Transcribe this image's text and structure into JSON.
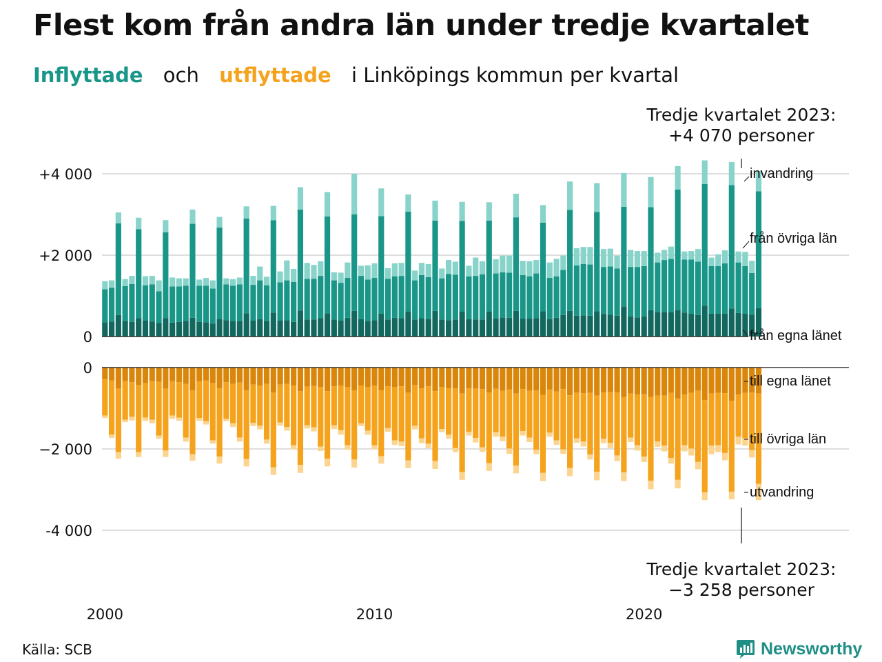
{
  "title": "Flest kom från andra län under tredje kvartalet",
  "subtitle": {
    "in_word": "Inflyttade",
    "and_word": "och",
    "out_word": "utflyttade",
    "rest": "i Linköpings  kommun  per  kvartal"
  },
  "annotation_top": {
    "line1": "Tredje kvartalet 2023:",
    "line2": "+4 070 personer"
  },
  "annotation_bottom": {
    "line1": "Tredje kvartalet 2023:",
    "line2": "−3 258 personer"
  },
  "source": "Källa: SCB",
  "brand": "Newsworthy",
  "colors": {
    "in_own": "#12675e",
    "in_other": "#1a9688",
    "in_immig": "#88d3ca",
    "out_own": "#d9860a",
    "out_other": "#f5a21c",
    "out_emig": "#fbd490"
  },
  "chart_data": {
    "type": "bar",
    "stacked": true,
    "x_label_ticks": [
      "2000",
      "2010",
      "2020"
    ],
    "y_ticks_top": [
      "+4 000",
      "+2 000",
      "0"
    ],
    "y_ticks_bottom": [
      "0",
      "−2 000",
      "-4 000"
    ],
    "ylim_top": [
      0,
      4400
    ],
    "ylim_bottom": [
      -4400,
      0
    ],
    "grid": true,
    "segment_labels_in": [
      "invandring",
      "från övriga län",
      "från egna länet"
    ],
    "segment_labels_out": [
      "till egna länet",
      "till övriga län",
      "utvandring"
    ],
    "start": "2000 Q1",
    "frequency": "quarterly",
    "in_own": [
      350,
      370,
      530,
      380,
      360,
      450,
      390,
      370,
      330,
      450,
      340,
      360,
      380,
      460,
      360,
      350,
      320,
      430,
      400,
      380,
      380,
      570,
      390,
      430,
      380,
      590,
      390,
      400,
      360,
      640,
      420,
      420,
      450,
      570,
      420,
      390,
      460,
      630,
      430,
      380,
      400,
      560,
      420,
      460,
      450,
      610,
      420,
      450,
      430,
      630,
      420,
      400,
      420,
      610,
      430,
      420,
      420,
      610,
      440,
      470,
      460,
      630,
      440,
      440,
      450,
      620,
      430,
      460,
      530,
      630,
      510,
      520,
      510,
      620,
      550,
      540,
      510,
      740,
      490,
      470,
      490,
      650,
      600,
      600,
      600,
      650,
      590,
      560,
      530,
      760,
      560,
      560,
      560,
      690,
      580,
      560,
      540,
      700
    ],
    "in_other": [
      810,
      830,
      2250,
      860,
      930,
      2190,
      870,
      910,
      780,
      2110,
      890,
      870,
      870,
      2310,
      890,
      900,
      860,
      2250,
      880,
      870,
      900,
      2330,
      880,
      950,
      880,
      2270,
      940,
      980,
      980,
      2480,
      1000,
      1000,
      1040,
      2380,
      960,
      930,
      980,
      2370,
      1060,
      1020,
      1040,
      2400,
      1000,
      1020,
      1040,
      2460,
      960,
      1060,
      1030,
      2220,
      1010,
      1140,
      1100,
      2230,
      1050,
      1070,
      1110,
      2240,
      1110,
      1110,
      1110,
      2300,
      1070,
      1040,
      1100,
      2180,
      1010,
      1020,
      1110,
      2480,
      1240,
      1260,
      1260,
      2440,
      1160,
      1180,
      1160,
      2450,
      1220,
      1240,
      1240,
      2530,
      1220,
      1280,
      1310,
      2960,
      1300,
      1330,
      1310,
      2990,
      1170,
      1170,
      1240,
      3030,
      1240,
      1170,
      1020,
      2870
    ],
    "in_immig": [
      200,
      180,
      270,
      170,
      200,
      280,
      220,
      210,
      270,
      300,
      220,
      200,
      180,
      350,
      150,
      190,
      200,
      260,
      150,
      160,
      170,
      300,
      220,
      340,
      210,
      350,
      270,
      490,
      320,
      550,
      390,
      340,
      360,
      600,
      200,
      250,
      380,
      1000,
      250,
      350,
      360,
      680,
      260,
      320,
      320,
      420,
      240,
      300,
      320,
      490,
      240,
      340,
      320,
      470,
      260,
      450,
      320,
      450,
      350,
      410,
      420,
      580,
      350,
      370,
      330,
      430,
      380,
      430,
      350,
      700,
      420,
      420,
      430,
      710,
      440,
      440,
      320,
      830,
      420,
      390,
      370,
      740,
      240,
      250,
      300,
      580,
      200,
      210,
      310,
      580,
      210,
      290,
      320,
      570,
      270,
      350,
      300,
      500
    ],
    "out_own": [
      -290,
      -320,
      -520,
      -330,
      -360,
      -430,
      -380,
      -330,
      -350,
      -520,
      -330,
      -360,
      -400,
      -560,
      -340,
      -320,
      -380,
      -500,
      -360,
      -400,
      -370,
      -560,
      -420,
      -440,
      -400,
      -610,
      -420,
      -400,
      -440,
      -580,
      -470,
      -450,
      -480,
      -580,
      -460,
      -440,
      -480,
      -560,
      -440,
      -480,
      -440,
      -560,
      -460,
      -480,
      -460,
      -610,
      -430,
      -510,
      -460,
      -580,
      -480,
      -500,
      -510,
      -640,
      -510,
      -520,
      -530,
      -610,
      -520,
      -570,
      -540,
      -640,
      -530,
      -570,
      -560,
      -670,
      -540,
      -590,
      -530,
      -680,
      -610,
      -630,
      -620,
      -690,
      -610,
      -600,
      -610,
      -720,
      -640,
      -660,
      -650,
      -720,
      -690,
      -690,
      -620,
      -760,
      -660,
      -620,
      -570,
      -800,
      -640,
      -620,
      -630,
      -820,
      -660,
      -620,
      -610,
      -640
    ],
    "out_other": [
      -890,
      -1330,
      -1560,
      -950,
      -850,
      -1650,
      -850,
      -950,
      -1320,
      -1520,
      -850,
      -870,
      -1320,
      -1570,
      -900,
      -1000,
      -1410,
      -1690,
      -900,
      -970,
      -1350,
      -1690,
      -940,
      -990,
      -1370,
      -1840,
      -930,
      -1060,
      -1470,
      -1810,
      -950,
      -1020,
      -1460,
      -1660,
      -960,
      -1100,
      -1430,
      -1700,
      -930,
      -1070,
      -1470,
      -1620,
      -1030,
      -1310,
      -1360,
      -1670,
      -1000,
      -1230,
      -1410,
      -1720,
      -1030,
      -1150,
      -1470,
      -1930,
      -1070,
      -1210,
      -1430,
      -1740,
      -1070,
      -1130,
      -1450,
      -1770,
      -1030,
      -1150,
      -1460,
      -1920,
      -1060,
      -1200,
      -1480,
      -1790,
      -1130,
      -1190,
      -1520,
      -1870,
      -1140,
      -1250,
      -1550,
      -1860,
      -1080,
      -1250,
      -1540,
      -2060,
      -1130,
      -1230,
      -1600,
      -2000,
      -1250,
      -1370,
      -1750,
      -2270,
      -1280,
      -1290,
      -1470,
      -2230,
      -1040,
      -1120,
      -1420,
      -2220
    ],
    "out_emig": [
      -60,
      -80,
      -160,
      -60,
      -90,
      -120,
      -80,
      -90,
      -80,
      -160,
      -80,
      -80,
      -100,
      -160,
      -70,
      -80,
      -80,
      -170,
      -60,
      -90,
      -100,
      -180,
      -80,
      -90,
      -100,
      -190,
      -80,
      -90,
      -100,
      -200,
      -80,
      -100,
      -110,
      -190,
      -90,
      -110,
      -110,
      -200,
      -70,
      -100,
      -100,
      -180,
      -90,
      -110,
      -110,
      -190,
      -90,
      -120,
      -110,
      -190,
      -80,
      -100,
      -100,
      -190,
      -90,
      -110,
      -110,
      -190,
      -110,
      -110,
      -130,
      -190,
      -110,
      -110,
      -110,
      -200,
      -100,
      -110,
      -110,
      -200,
      -110,
      -120,
      -120,
      -210,
      -110,
      -130,
      -140,
      -210,
      -110,
      -130,
      -130,
      -210,
      -130,
      -140,
      -140,
      -210,
      -150,
      -170,
      -180,
      -190,
      -210,
      -170,
      -180,
      -190,
      -190,
      -180,
      -180,
      -400
    ]
  }
}
